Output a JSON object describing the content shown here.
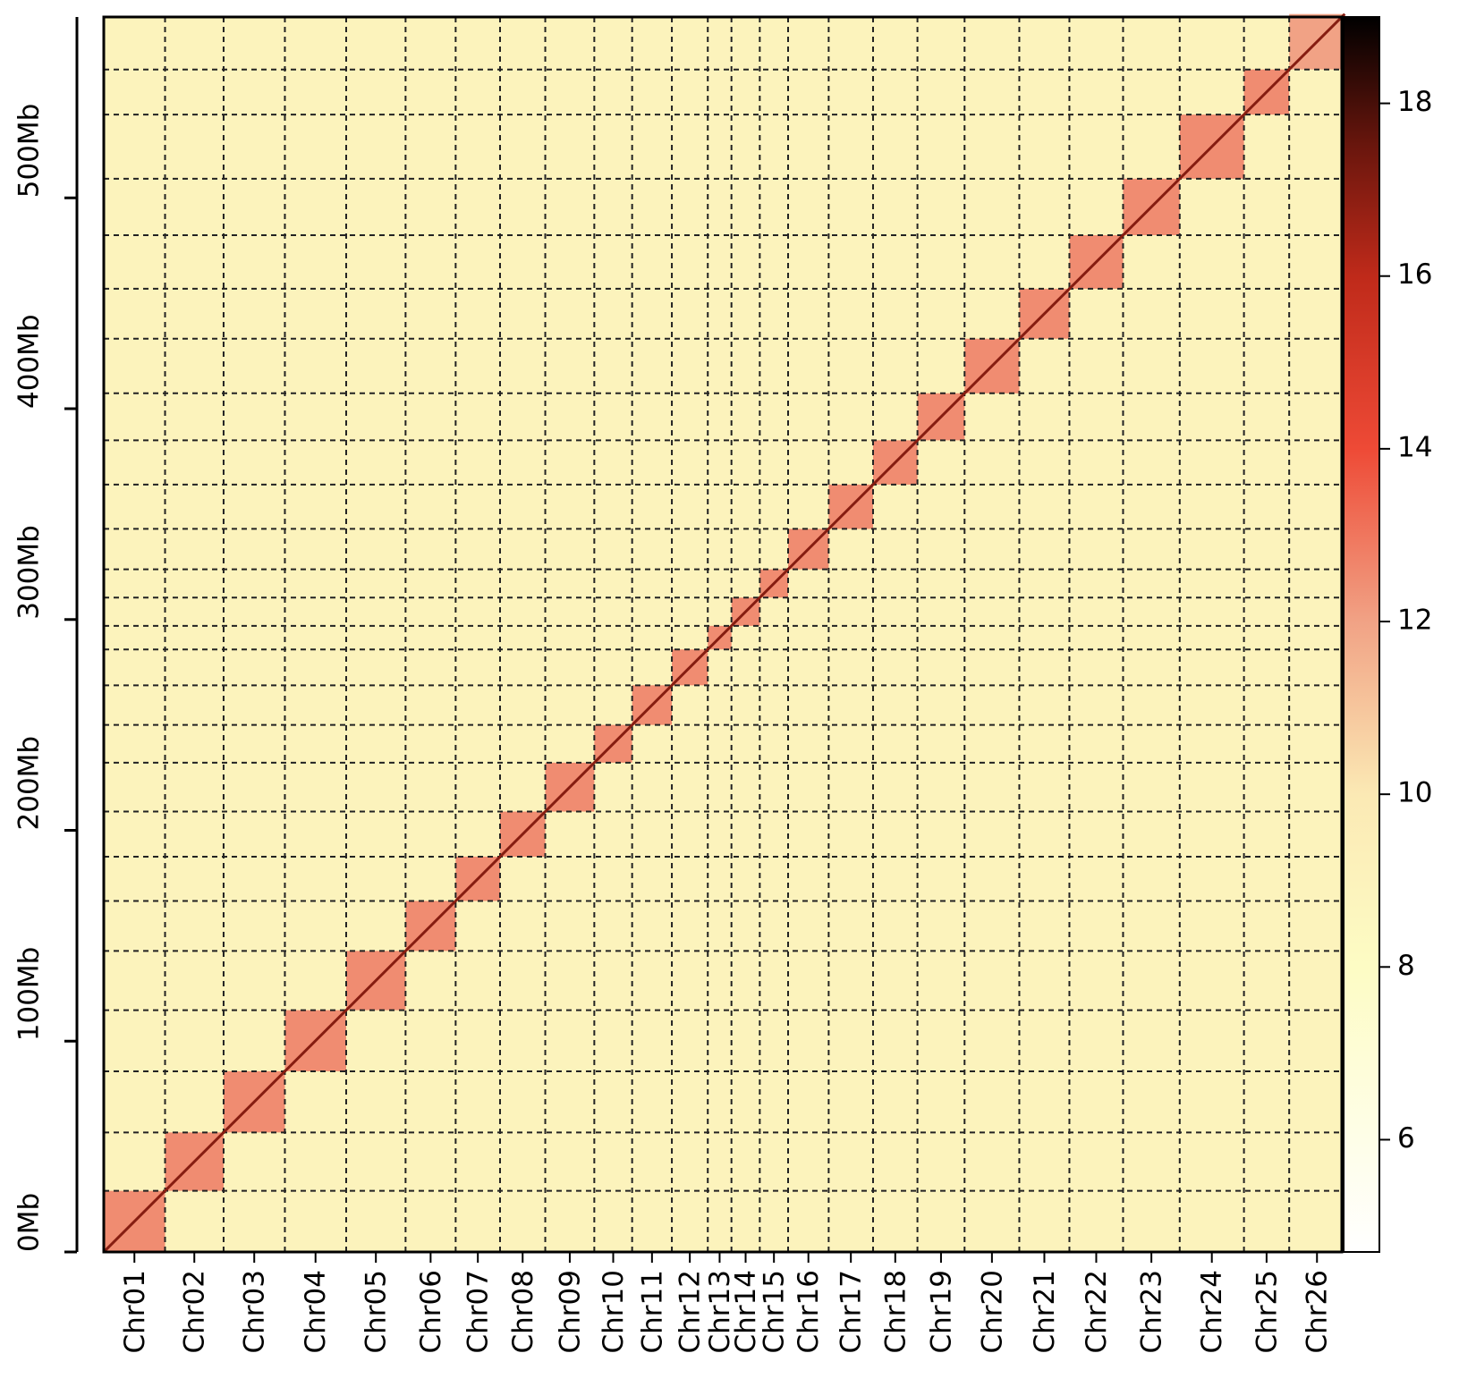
{
  "chart_data": {
    "type": "heatmap",
    "categories": [
      "Chr01",
      "Chr02",
      "Chr03",
      "Chr04",
      "Chr05",
      "Chr06",
      "Chr07",
      "Chr08",
      "Chr09",
      "Chr10",
      "Chr11",
      "Chr12",
      "Chr13",
      "Chr14",
      "Chr15",
      "Chr16",
      "Chr17",
      "Chr18",
      "Chr19",
      "Chr20",
      "Chr21",
      "Chr22",
      "Chr23",
      "Chr24",
      "Chr25",
      "Chr26"
    ],
    "lengths": [
      29.0,
      27.7,
      29.0,
      29.0,
      28.1,
      23.7,
      21.0,
      21.4,
      23.2,
      17.9,
      18.8,
      17.0,
      11.2,
      13.4,
      13.4,
      19.2,
      21.0,
      21.0,
      22.3,
      25.9,
      23.7,
      25.4,
      26.8,
      30.4,
      21.4,
      26.3
    ],
    "intra_values": [
      12.5,
      12.5,
      12.5,
      12.5,
      12.5,
      12.5,
      12.5,
      12.5,
      12.5,
      12.5,
      12.5,
      12.5,
      12.5,
      12.5,
      12.5,
      12.5,
      12.5,
      12.5,
      12.5,
      12.5,
      12.5,
      12.5,
      12.5,
      12.5,
      12.5,
      12.0
    ],
    "inter_value": 9,
    "diagonal_value": 17,
    "xlim": [
      0,
      585.8
    ],
    "ylim": [
      0,
      585.8
    ],
    "yticks": [
      {
        "value": 0,
        "label": "0Mb"
      },
      {
        "value": 100,
        "label": "100Mb"
      },
      {
        "value": 200,
        "label": "200Mb"
      },
      {
        "value": 300,
        "label": "300Mb"
      },
      {
        "value": 400,
        "label": "400Mb"
      },
      {
        "value": 500,
        "label": "500Mb"
      }
    ],
    "colorbar": {
      "lim": [
        4.7,
        19
      ],
      "ticks": [
        6,
        8,
        10,
        12,
        14,
        16,
        18
      ]
    },
    "colorscale": [
      {
        "value": 4.7,
        "color": "#ffffff"
      },
      {
        "value": 8,
        "color": "#fdfcc4"
      },
      {
        "value": 10,
        "color": "#fbe9b4"
      },
      {
        "value": 12,
        "color": "#f1a285"
      },
      {
        "value": 14,
        "color": "#ee4a36"
      },
      {
        "value": 16,
        "color": "#bf2a1a"
      },
      {
        "value": 17.5,
        "color": "#6a160d"
      },
      {
        "value": 19,
        "color": "#000000"
      }
    ],
    "grid_style": "dashed"
  }
}
